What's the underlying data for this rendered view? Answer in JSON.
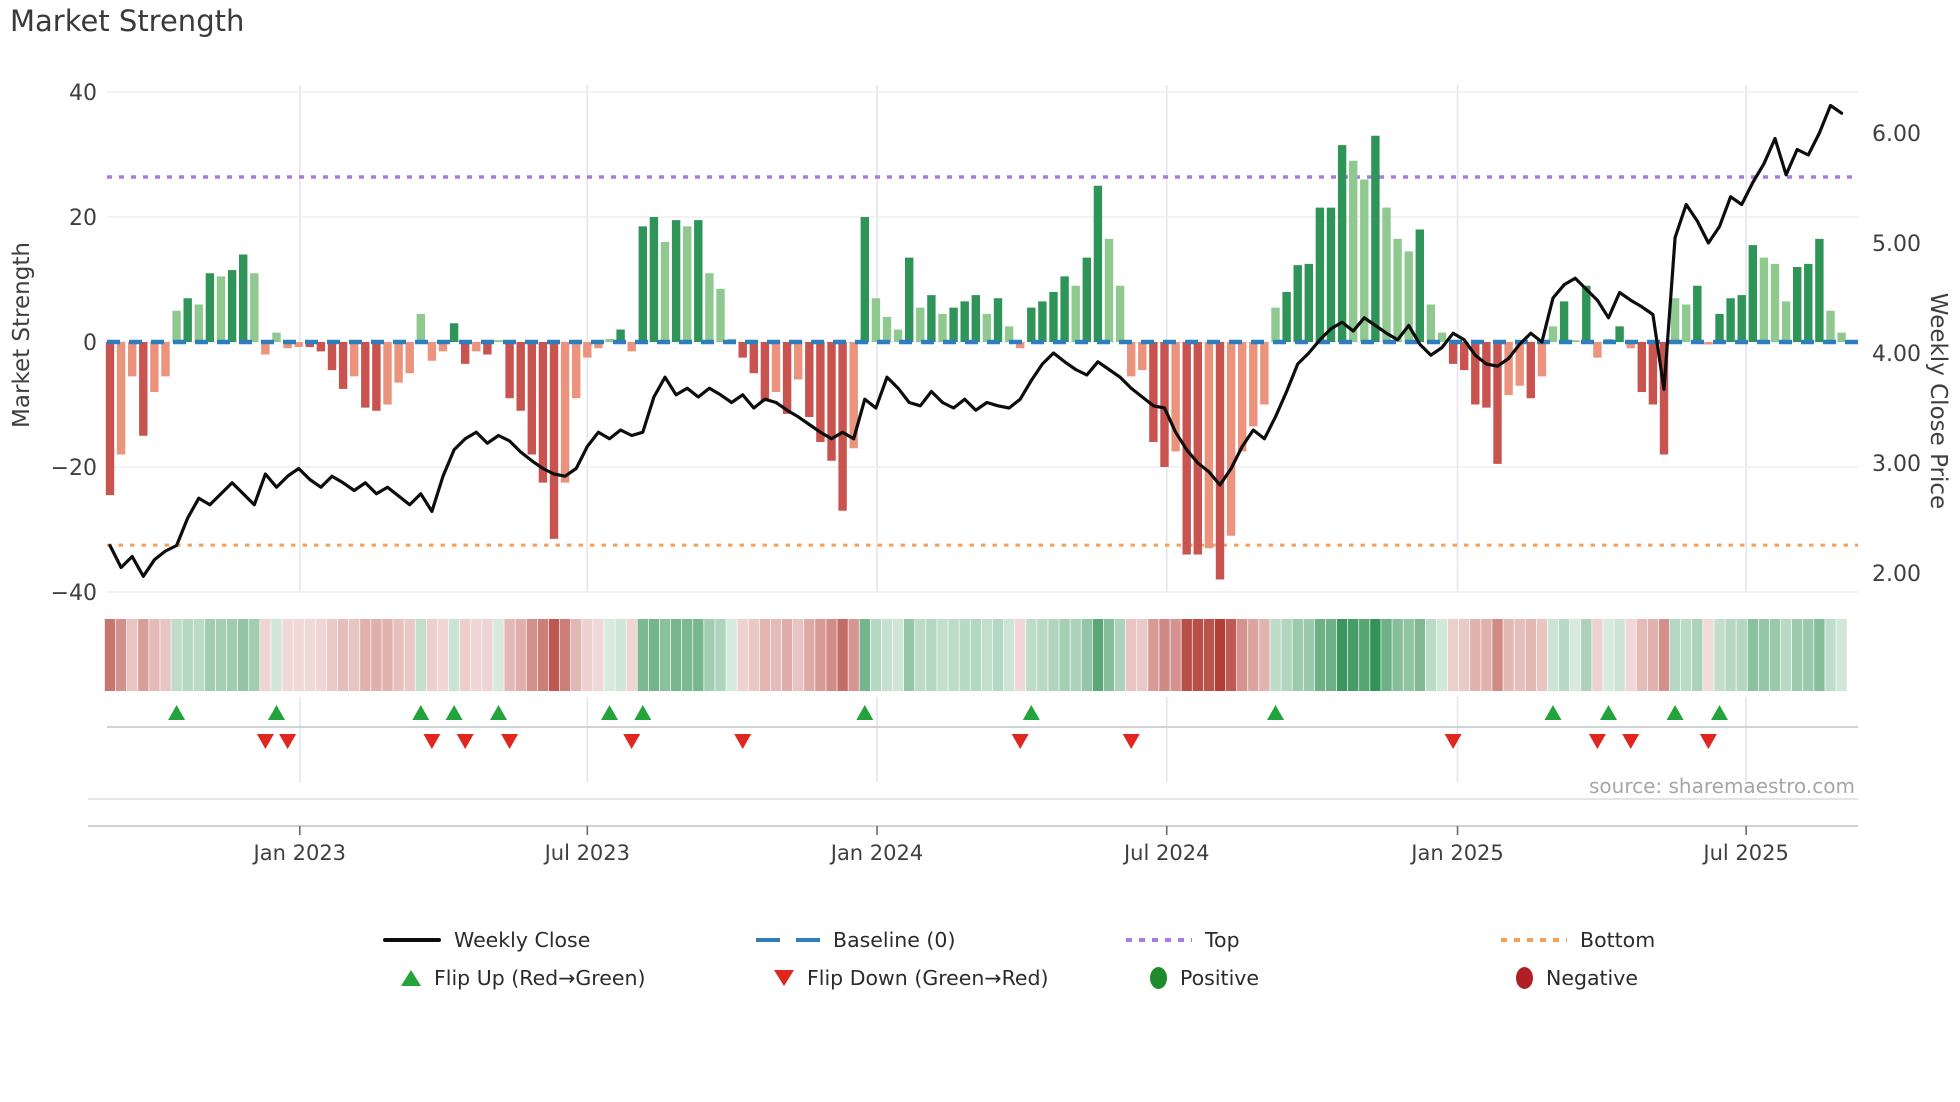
{
  "title": "Market Strength",
  "source": "source: sharemaestro.com",
  "colors": {
    "bar_pos_dark": "#2e9457",
    "bar_pos_light": "#8fc98f",
    "bar_neg_dark": "#c9534e",
    "bar_neg_light": "#eb937c",
    "line": "#0d0d0d",
    "baseline": "#2e7ebc",
    "top": "#a87ce0",
    "bottom": "#f3a059",
    "flip_up": "#23a33c",
    "flip_down": "#e0261f",
    "grid": "#eceef3",
    "vgrid": "#e3e6ec",
    "axis_text": "#3f3f3f",
    "heat_green": "#1a8442",
    "heat_red": "#b23e36"
  },
  "legend": {
    "weekly_close": "Weekly Close",
    "baseline": "Baseline (0)",
    "top": "Top",
    "bottom": "Bottom",
    "flip_up": "Flip Up (Red→Green)",
    "flip_down": "Flip Down (Green→Red)",
    "positive": "Positive",
    "negative": "Negative"
  },
  "chart_data": {
    "type": "combo",
    "weeks": 157,
    "left_axis": {
      "label": "Market Strength",
      "range": [
        -43,
        43
      ],
      "ticks": [
        {
          "v": 40,
          "label": "40"
        },
        {
          "v": 20,
          "label": "20"
        },
        {
          "v": 0,
          "label": "0"
        },
        {
          "v": -20,
          "label": "−20"
        },
        {
          "v": -40,
          "label": "−40"
        }
      ]
    },
    "right_axis": {
      "label": "Weekly Close Price",
      "range": [
        1.9,
        6.4
      ],
      "ticks": [
        {
          "v": 6,
          "label": "6.00"
        },
        {
          "v": 5,
          "label": "5.00"
        },
        {
          "v": 4,
          "label": "4.00"
        },
        {
          "v": 3,
          "label": "3.00"
        },
        {
          "v": 2,
          "label": "2.00"
        }
      ]
    },
    "x_axis": {
      "ticks": [
        {
          "pos": 17.1,
          "label": "Jan 2023"
        },
        {
          "pos": 43.0,
          "label": "Jul 2023"
        },
        {
          "pos": 69.1,
          "label": "Jan 2024"
        },
        {
          "pos": 95.2,
          "label": "Jul 2024"
        },
        {
          "pos": 121.4,
          "label": "Jan 2025"
        },
        {
          "pos": 147.4,
          "label": "Jul 2025"
        }
      ]
    },
    "strength_bars": {
      "name": "Market Strength",
      "type": "bar",
      "axis": "left",
      "values": [
        -24.5,
        -18,
        -5.5,
        -15,
        -8,
        -5.5,
        5,
        7,
        6,
        11,
        10.5,
        11.5,
        14,
        11,
        -2,
        1.5,
        -1,
        -0.8,
        -0.8,
        -1.5,
        -4.5,
        -7.5,
        -5.5,
        -10.5,
        -11,
        -10,
        -6.5,
        -5,
        4.5,
        -3,
        -1.5,
        3,
        -3.5,
        -1.5,
        -2,
        0.3,
        -9,
        -11,
        -18,
        -22.5,
        -31.5,
        -22.5,
        -9,
        -2.5,
        -1,
        0.5,
        2,
        -1.5,
        18.5,
        20,
        16,
        19.5,
        18.5,
        19.5,
        11,
        8.5,
        0.5,
        -2.5,
        -5,
        -9.5,
        -8,
        -11.5,
        -6,
        -12,
        -16,
        -19,
        -27,
        -17,
        20,
        7,
        4,
        2,
        13.5,
        5.5,
        7.5,
        4.5,
        5.5,
        6.5,
        7.5,
        4.5,
        7,
        2.5,
        -1,
        5.5,
        6.5,
        8,
        10.5,
        9,
        13.5,
        25,
        16.5,
        9,
        -5.5,
        -4.5,
        -16,
        -20,
        -17.5,
        -34,
        -34,
        -33,
        -38,
        -31,
        -17.5,
        -13.5,
        -10,
        5.5,
        8,
        12.3,
        12.5,
        21.5,
        21.5,
        31.5,
        29,
        26,
        33,
        21.5,
        16.5,
        14.5,
        18,
        6,
        1.5,
        -3.5,
        -4.5,
        -10,
        -10.5,
        -19.5,
        -8.5,
        -7,
        -9,
        -5.5,
        2.5,
        6.5,
        0.3,
        9,
        -2.5,
        0.5,
        2.5,
        -1,
        -8,
        -10,
        -18,
        7,
        6,
        9,
        -0.4,
        4.5,
        7,
        7.5,
        15.5,
        13.5,
        12.5,
        6.5,
        12,
        12.5,
        16.5,
        5,
        1.5
      ]
    },
    "weekly_close": {
      "name": "Weekly Close",
      "type": "line",
      "axis": "right",
      "values": [
        2.25,
        2.05,
        2.15,
        1.97,
        2.12,
        2.2,
        2.25,
        2.5,
        2.68,
        2.62,
        2.72,
        2.82,
        2.72,
        2.62,
        2.9,
        2.78,
        2.88,
        2.95,
        2.85,
        2.78,
        2.88,
        2.82,
        2.75,
        2.82,
        2.72,
        2.78,
        2.7,
        2.62,
        2.72,
        2.56,
        2.88,
        3.12,
        3.22,
        3.28,
        3.18,
        3.25,
        3.2,
        3.1,
        3.02,
        2.95,
        2.9,
        2.88,
        2.95,
        3.15,
        3.28,
        3.22,
        3.3,
        3.25,
        3.28,
        3.6,
        3.78,
        3.62,
        3.68,
        3.6,
        3.68,
        3.62,
        3.55,
        3.62,
        3.5,
        3.58,
        3.55,
        3.48,
        3.42,
        3.35,
        3.28,
        3.22,
        3.28,
        3.22,
        3.58,
        3.5,
        3.78,
        3.68,
        3.55,
        3.52,
        3.65,
        3.55,
        3.5,
        3.58,
        3.48,
        3.55,
        3.52,
        3.5,
        3.58,
        3.75,
        3.9,
        4.0,
        3.92,
        3.85,
        3.8,
        3.92,
        3.85,
        3.78,
        3.68,
        3.6,
        3.52,
        3.5,
        3.28,
        3.12,
        3.0,
        2.92,
        2.8,
        2.95,
        3.15,
        3.3,
        3.22,
        3.42,
        3.65,
        3.9,
        4.0,
        4.12,
        4.22,
        4.28,
        4.2,
        4.32,
        4.25,
        4.18,
        4.12,
        4.25,
        4.08,
        3.98,
        4.05,
        4.18,
        4.12,
        3.98,
        3.9,
        3.88,
        3.95,
        4.08,
        4.18,
        4.1,
        4.5,
        4.62,
        4.68,
        4.58,
        4.48,
        4.32,
        4.55,
        4.48,
        4.42,
        4.35,
        3.67,
        5.05,
        5.35,
        5.2,
        5.0,
        5.15,
        5.42,
        5.35,
        5.55,
        5.72,
        5.95,
        5.62,
        5.85,
        5.8,
        6.0,
        6.25,
        6.18
      ]
    },
    "baseline": {
      "name": "Baseline (0)",
      "type": "hline",
      "value": 0
    },
    "top_line": {
      "name": "Top",
      "type": "hline",
      "value": 26.4
    },
    "bottom_line": {
      "name": "Bottom",
      "type": "hline",
      "value": -32.5
    },
    "flip_up_weeks": [
      6,
      15,
      28,
      31,
      35,
      45,
      48,
      68,
      83,
      105,
      130,
      135,
      141,
      145
    ],
    "flip_down_weeks": [
      14,
      16,
      29,
      32,
      36,
      47,
      57,
      82,
      92,
      121,
      134,
      137,
      144
    ],
    "heatmap": {
      "type": "heatmap",
      "note": "weekly strip colored by strength_bars.values, red negative to green positive"
    }
  }
}
